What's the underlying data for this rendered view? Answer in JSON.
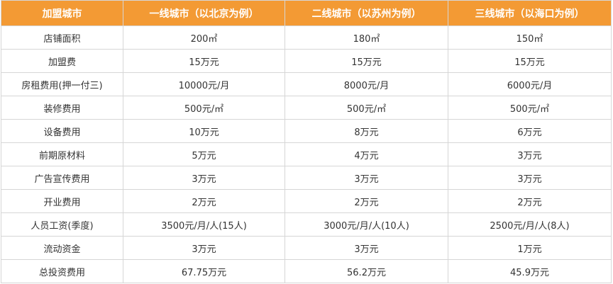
{
  "table": {
    "header": [
      "加盟城市",
      "一线城市（以北京为例）",
      "二线城市（以苏州为例）",
      "三线城市（以海口为例）"
    ],
    "rows": [
      [
        "店铺面积",
        "200㎡",
        "180㎡",
        "150㎡"
      ],
      [
        "加盟费",
        "15万元",
        "15万元",
        "15万元"
      ],
      [
        "房租费用(押一付三)",
        "10000元/月",
        "8000元/月",
        "6000元/月"
      ],
      [
        "装修费用",
        "500元/㎡",
        "500元/㎡",
        "500元/㎡"
      ],
      [
        "设备费用",
        "10万元",
        "8万元",
        "6万元"
      ],
      [
        "前期原材料",
        "5万元",
        "4万元",
        "3万元"
      ],
      [
        "广告宣传费用",
        "3万元",
        "3万元",
        "3万元"
      ],
      [
        "开业费用",
        "2万元",
        "2万元",
        "2万元"
      ],
      [
        "人员工资(季度)",
        "3500元/月/人(15人)",
        "3000元/月/人(10人)",
        "2500元/月/人(8人)"
      ],
      [
        "流动资金",
        "3万元",
        "3万元",
        "1万元"
      ],
      [
        "总投资费用",
        "67.75万元",
        "56.2万元",
        "45.9万元"
      ]
    ]
  }
}
